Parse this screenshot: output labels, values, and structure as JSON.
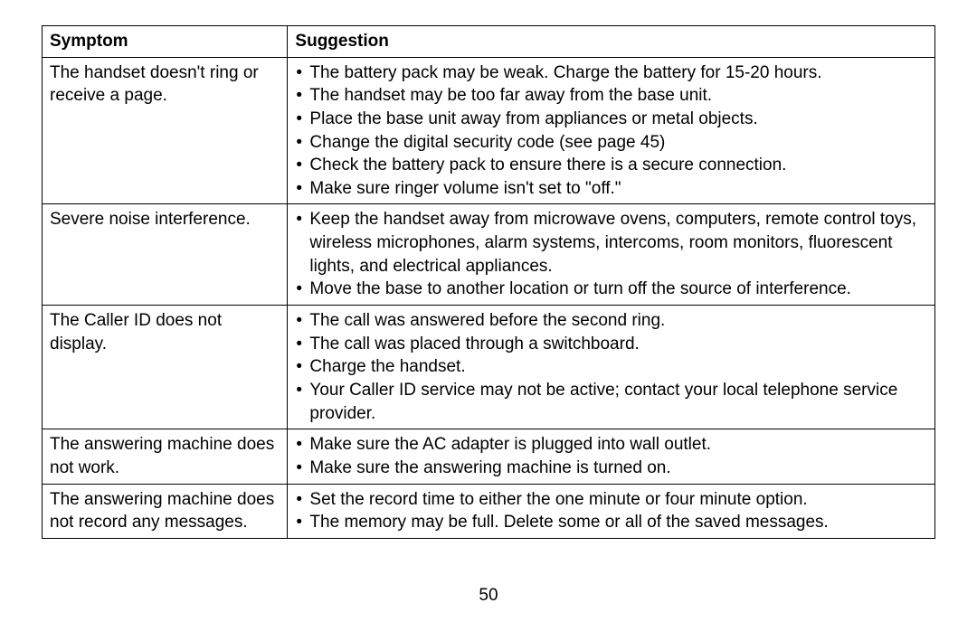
{
  "page_number": "50",
  "table": {
    "headers": {
      "symptom": "Symptom",
      "suggestion": "Suggestion"
    },
    "rows": [
      {
        "symptom": "The handset doesn't ring or receive a page.",
        "suggestions": [
          "The battery pack may be weak. Charge the battery for 15-20 hours.",
          "The handset may be too far away from the base unit.",
          "Place the base unit away from appliances or metal objects.",
          "Change the digital security code (see page 45)",
          "Check the battery pack to ensure there is a secure connection.",
          "Make sure ringer volume isn't set to \"off.\""
        ]
      },
      {
        "symptom": "Severe noise interference.",
        "suggestions": [
          "Keep the handset away from microwave ovens, computers, remote control toys, wireless microphones, alarm systems, intercoms, room monitors, fluorescent lights, and electrical appliances.",
          "Move the base to another location or turn off the source of interference."
        ]
      },
      {
        "symptom": "The Caller ID does not display.",
        "suggestions": [
          "The call was answered before the second ring.",
          "The call was placed through a switchboard.",
          "Charge the handset.",
          "Your Caller ID service may not be active; contact your local telephone service provider."
        ]
      },
      {
        "symptom": "The answering machine does not work.",
        "suggestions": [
          "Make sure the AC adapter is plugged into wall outlet.",
          "Make sure the answering machine is turned on."
        ]
      },
      {
        "symptom": "The answering machine does not record any messages.",
        "suggestions": [
          "Set the record time to either the one minute or four minute option.",
          "The memory may be full. Delete some or all of the saved messages."
        ]
      }
    ]
  }
}
